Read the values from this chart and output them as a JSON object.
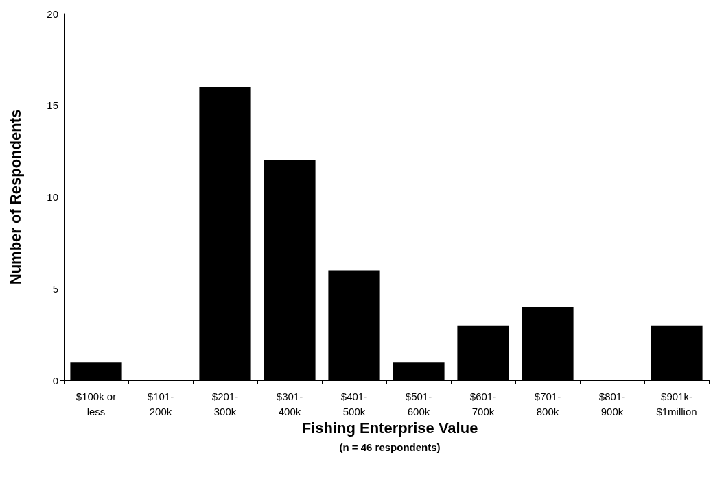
{
  "chart_data": {
    "type": "bar",
    "xlabel": "Fishing Enterprise Value",
    "subtitle": "(n = 46 respondents)",
    "ylabel": "Number of Respondents",
    "categories": [
      "$100k or\nless",
      "$101-\n200k",
      "$201-\n300k",
      "$301-\n400k",
      "$401-\n500k",
      "$501-\n600k",
      "$601-\n700k",
      "$701-\n800k",
      "$801-\n900k",
      "$901k-\n$1million"
    ],
    "values": [
      1,
      0,
      16,
      12,
      6,
      1,
      3,
      4,
      0,
      3
    ],
    "color": "#000000",
    "ylim": [
      0,
      20
    ],
    "yticks": [
      0,
      5,
      10,
      15,
      20
    ],
    "grid": "y"
  }
}
